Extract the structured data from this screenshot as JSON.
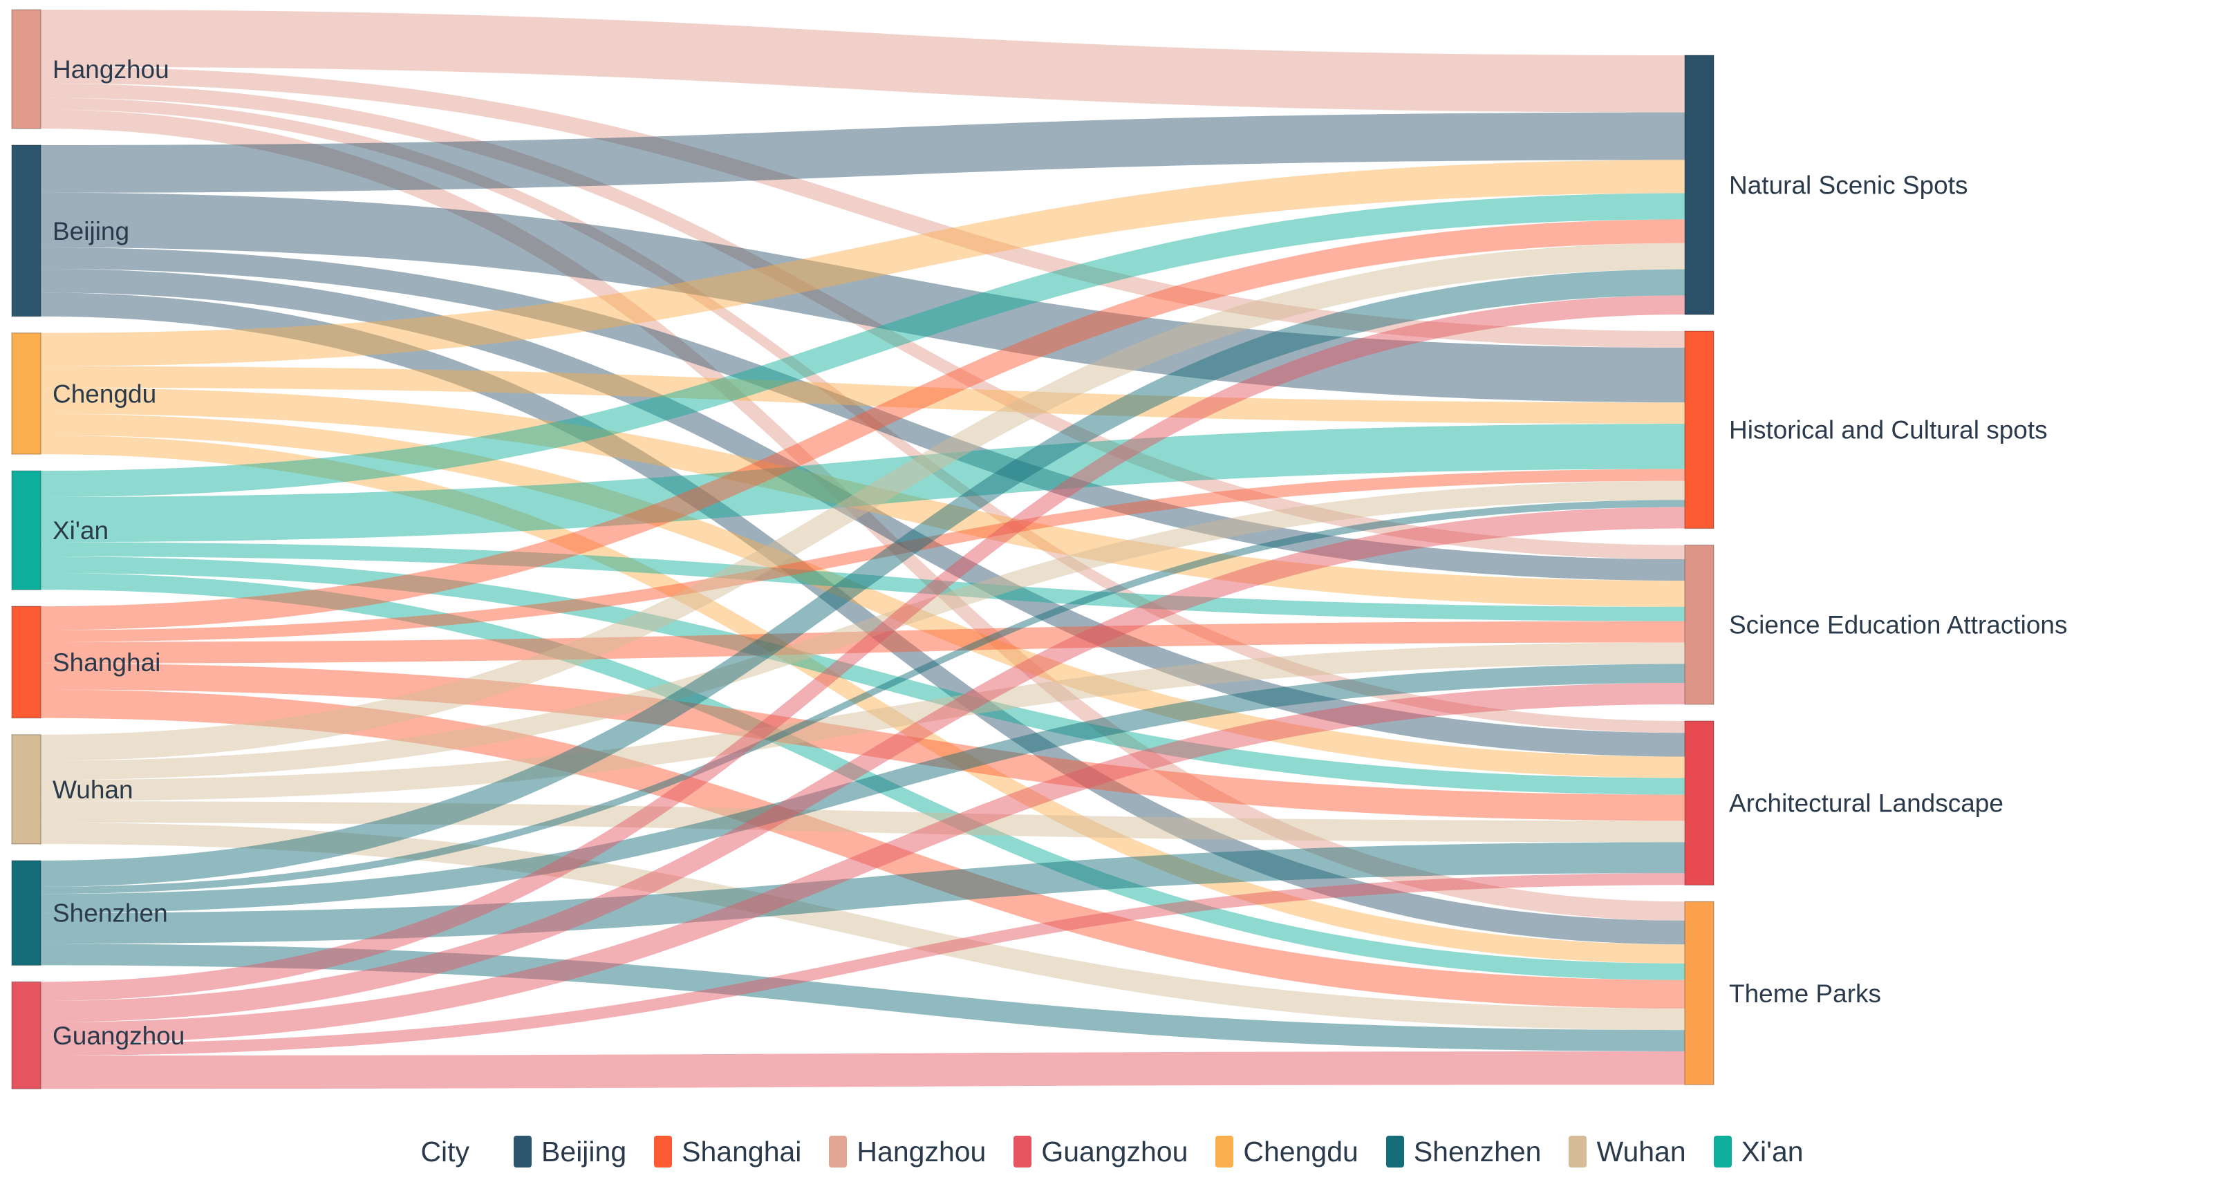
{
  "chart_data": {
    "type": "sankey",
    "orientation": "horizontal",
    "background": "#ffffff",
    "text_color": "#2a3a4a",
    "link_opacity": 0.47,
    "source_nodes": [
      {
        "label": "Hangzhou",
        "color": "#E09B8B"
      },
      {
        "label": "Beijing",
        "color": "#2D566E"
      },
      {
        "label": "Chengdu",
        "color": "#FBAE4D"
      },
      {
        "label": "Xi'an",
        "color": "#0FAE9C"
      },
      {
        "label": "Shanghai",
        "color": "#FC5A33"
      },
      {
        "label": "Wuhan",
        "color": "#D5BC96"
      },
      {
        "label": "Shenzhen",
        "color": "#166D7A"
      },
      {
        "label": "Guangzhou",
        "color": "#E45560"
      }
    ],
    "target_nodes": [
      {
        "label": "Natural Scenic Spots",
        "color": "#2B5169"
      },
      {
        "label": "Historical and Cultural spots",
        "color": "#FC5A31"
      },
      {
        "label": "Science Education Attractions",
        "color": "#DD9587"
      },
      {
        "label": "Architectural Landscape",
        "color": "#E84A52"
      },
      {
        "label": "Theme Parks",
        "color": "#FCA24E"
      }
    ],
    "links": [
      {
        "source": "Hangzhou",
        "target": "Natural Scenic Spots",
        "value": 24
      },
      {
        "source": "Hangzhou",
        "target": "Historical and Cultural spots",
        "value": 7
      },
      {
        "source": "Hangzhou",
        "target": "Science Education Attractions",
        "value": 6
      },
      {
        "source": "Hangzhou",
        "target": "Architectural Landscape",
        "value": 5
      },
      {
        "source": "Hangzhou",
        "target": "Theme Parks",
        "value": 8
      },
      {
        "source": "Beijing",
        "target": "Natural Scenic Spots",
        "value": 20
      },
      {
        "source": "Beijing",
        "target": "Historical and Cultural spots",
        "value": 23
      },
      {
        "source": "Beijing",
        "target": "Science Education Attractions",
        "value": 9
      },
      {
        "source": "Beijing",
        "target": "Architectural Landscape",
        "value": 10
      },
      {
        "source": "Beijing",
        "target": "Theme Parks",
        "value": 10
      },
      {
        "source": "Chengdu",
        "target": "Natural Scenic Spots",
        "value": 14
      },
      {
        "source": "Chengdu",
        "target": "Historical and Cultural spots",
        "value": 9
      },
      {
        "source": "Chengdu",
        "target": "Science Education Attractions",
        "value": 11
      },
      {
        "source": "Chengdu",
        "target": "Architectural Landscape",
        "value": 9
      },
      {
        "source": "Chengdu",
        "target": "Theme Parks",
        "value": 8
      },
      {
        "source": "Xi'an",
        "target": "Natural Scenic Spots",
        "value": 11
      },
      {
        "source": "Xi'an",
        "target": "Historical and Cultural spots",
        "value": 19
      },
      {
        "source": "Xi'an",
        "target": "Science Education Attractions",
        "value": 6
      },
      {
        "source": "Xi'an",
        "target": "Architectural Landscape",
        "value": 7
      },
      {
        "source": "Xi'an",
        "target": "Theme Parks",
        "value": 7
      },
      {
        "source": "Shanghai",
        "target": "Natural Scenic Spots",
        "value": 10
      },
      {
        "source": "Shanghai",
        "target": "Historical and Cultural spots",
        "value": 5
      },
      {
        "source": "Shanghai",
        "target": "Science Education Attractions",
        "value": 9
      },
      {
        "source": "Shanghai",
        "target": "Architectural Landscape",
        "value": 11
      },
      {
        "source": "Shanghai",
        "target": "Theme Parks",
        "value": 12
      },
      {
        "source": "Wuhan",
        "target": "Natural Scenic Spots",
        "value": 11
      },
      {
        "source": "Wuhan",
        "target": "Historical and Cultural spots",
        "value": 8
      },
      {
        "source": "Wuhan",
        "target": "Science Education Attractions",
        "value": 9
      },
      {
        "source": "Wuhan",
        "target": "Architectural Landscape",
        "value": 9
      },
      {
        "source": "Wuhan",
        "target": "Theme Parks",
        "value": 9
      },
      {
        "source": "Shenzhen",
        "target": "Natural Scenic Spots",
        "value": 11
      },
      {
        "source": "Shenzhen",
        "target": "Historical and Cultural spots",
        "value": 3
      },
      {
        "source": "Shenzhen",
        "target": "Science Education Attractions",
        "value": 8
      },
      {
        "source": "Shenzhen",
        "target": "Architectural Landscape",
        "value": 13
      },
      {
        "source": "Shenzhen",
        "target": "Theme Parks",
        "value": 9
      },
      {
        "source": "Guangzhou",
        "target": "Natural Scenic Spots",
        "value": 8
      },
      {
        "source": "Guangzhou",
        "target": "Historical and Cultural spots",
        "value": 9
      },
      {
        "source": "Guangzhou",
        "target": "Science Education Attractions",
        "value": 9
      },
      {
        "source": "Guangzhou",
        "target": "Architectural Landscape",
        "value": 5
      },
      {
        "source": "Guangzhou",
        "target": "Theme Parks",
        "value": 14
      }
    ],
    "legend": {
      "title": "City",
      "items": [
        {
          "label": "Beijing",
          "color": "#2D566E"
        },
        {
          "label": "Shanghai",
          "color": "#FC5A33"
        },
        {
          "label": "Hangzhou",
          "color": "#E2A493"
        },
        {
          "label": "Guangzhou",
          "color": "#E45560"
        },
        {
          "label": "Chengdu",
          "color": "#FBAE4D"
        },
        {
          "label": "Shenzhen",
          "color": "#166D7A"
        },
        {
          "label": "Wuhan",
          "color": "#D5BC96"
        },
        {
          "label": "Xi'an",
          "color": "#0FAE9C"
        }
      ]
    }
  }
}
